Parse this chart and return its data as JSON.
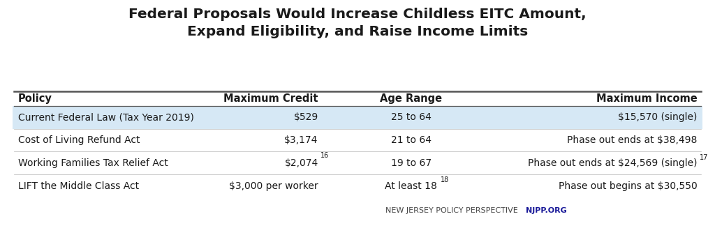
{
  "title_line1": "Federal Proposals Would Increase Childless EITC Amount,",
  "title_line2": "Expand Eligibility, and Raise Income Limits",
  "title_fontsize": 14.5,
  "title_fontweight": "bold",
  "headers": [
    "Policy",
    "Maximum Credit",
    "Age Range",
    "Maximum Income"
  ],
  "rows": [
    {
      "policy": "Current Federal Law (Tax Year 2019)",
      "credit": "$529",
      "age": "25 to 64",
      "income": "$15,570 (single)",
      "highlight": true
    },
    {
      "policy": "Cost of Living Refund Act",
      "credit": "$3,174",
      "age": "21 to 64",
      "income": "Phase out ends at $38,498",
      "highlight": false
    },
    {
      "policy": "Working Families Tax Relief Act",
      "credit_main": "$2,074",
      "credit_sup": "16",
      "age": "19 to 67",
      "income_main": "Phase out ends at $24,569 (single)",
      "income_sup": "17",
      "highlight": false
    },
    {
      "policy": "LIFT the Middle Class Act",
      "credit_main": "$3,000 per worker",
      "credit_sup": "",
      "age_main": "At least 18",
      "age_sup": "18",
      "income_main": "Phase out begins at $30,550",
      "income_sup": "",
      "highlight": false
    }
  ],
  "highlight_color": "#d6e8f5",
  "background_color": "#ffffff",
  "line_color": "#555555",
  "text_color": "#1a1a1a",
  "footer_text": "NEW JERSEY POLICY PERSPECTIVE",
  "footer_bold": "NJPP.ORG",
  "footer_color": "#444444",
  "footer_bold_color": "#1a1a99",
  "header_fontsize": 10.5,
  "row_fontsize": 10.0,
  "sup_fontsize": 7.0,
  "footer_fontsize": 8.0
}
